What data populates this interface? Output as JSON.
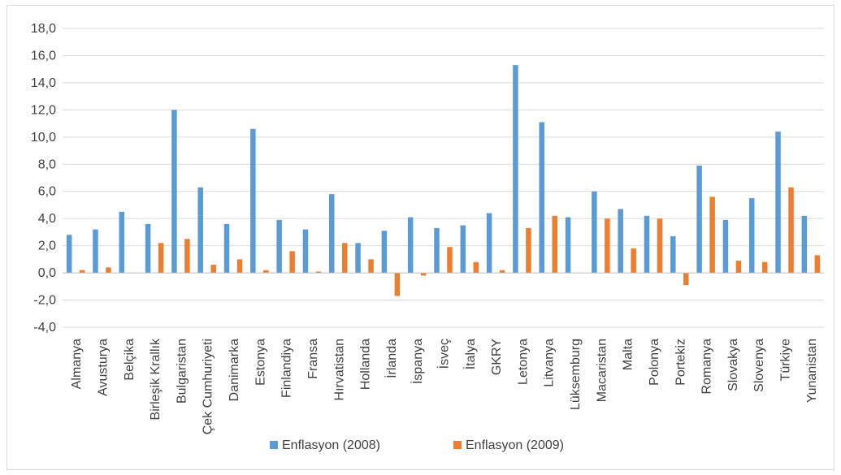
{
  "chart_data": {
    "type": "bar",
    "title": "",
    "xlabel": "",
    "ylabel": "",
    "ylim": [
      -4.0,
      18.0
    ],
    "ytick_step": 2.0,
    "grid": true,
    "legend_position": "bottom",
    "categories": [
      "Almanya",
      "Avusturya",
      "Belçika",
      "Birleşik Krallık",
      "Bulgaristan",
      "Çek Cumhuriyeti",
      "Danimarka",
      "Estonya",
      "Finlandiya",
      "Fransa",
      "Hırvatistan",
      "Hollanda",
      "İrlanda",
      "İspanya",
      "İsveç",
      "İtalya",
      "GKRY",
      "Letonya",
      "Litvanya",
      "Lüksemburg",
      "Macaristan",
      "Malta",
      "Polonya",
      "Portekiz",
      "Romanya",
      "Slovakya",
      "Slovenya",
      "Türkiye",
      "Yunanistan"
    ],
    "series": [
      {
        "name": "Enflasyon (2008)",
        "color": "#5b9bd5",
        "values": [
          2.8,
          3.2,
          4.5,
          3.6,
          12.0,
          6.3,
          3.6,
          10.6,
          3.9,
          3.2,
          5.8,
          2.2,
          3.1,
          4.1,
          3.3,
          3.5,
          4.4,
          15.3,
          11.1,
          4.1,
          6.0,
          4.7,
          4.2,
          2.7,
          7.9,
          3.9,
          5.5,
          10.4,
          4.2
        ]
      },
      {
        "name": "Enflasyon (2009)",
        "color": "#ed7d31",
        "values": [
          0.2,
          0.4,
          0.0,
          2.2,
          2.5,
          0.6,
          1.0,
          0.2,
          1.6,
          0.1,
          2.2,
          1.0,
          -1.7,
          -0.2,
          1.9,
          0.8,
          0.2,
          3.3,
          4.2,
          0.0,
          4.0,
          1.8,
          4.0,
          -0.9,
          5.6,
          0.9,
          0.8,
          6.3,
          1.3
        ]
      }
    ]
  }
}
